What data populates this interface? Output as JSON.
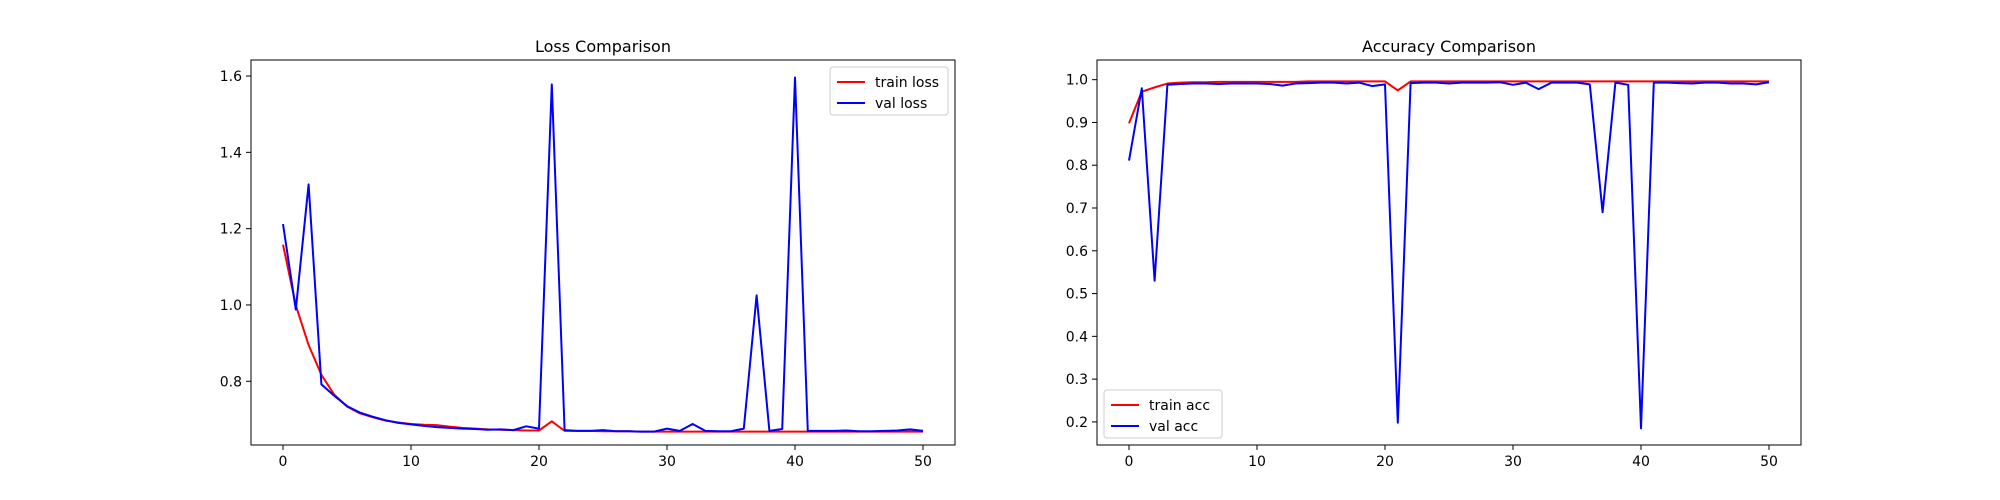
{
  "chart_data": [
    {
      "type": "line",
      "title": "Loss Comparison",
      "xlabel": "",
      "ylabel": "",
      "xlim": [
        -2.5,
        52.5
      ],
      "ylim": [
        0.633,
        1.642
      ],
      "xticks": [
        0,
        10,
        20,
        30,
        40,
        50
      ],
      "yticks": [
        0.8,
        1.0,
        1.2,
        1.4,
        1.6
      ],
      "ytick_labels": [
        "0.8",
        "1.0",
        "1.2",
        "1.4",
        "1.6"
      ],
      "legend_position": "top-right",
      "x": [
        0,
        1,
        2,
        3,
        4,
        5,
        6,
        7,
        8,
        9,
        10,
        11,
        12,
        13,
        14,
        15,
        16,
        17,
        18,
        19,
        20,
        21,
        22,
        23,
        24,
        25,
        26,
        27,
        28,
        29,
        30,
        31,
        32,
        33,
        34,
        35,
        36,
        37,
        38,
        39,
        40,
        41,
        42,
        43,
        44,
        45,
        46,
        47,
        48,
        49,
        50
      ],
      "series": [
        {
          "name": "train loss",
          "color": "#ff0000",
          "values": [
            1.158,
            0.999,
            0.895,
            0.817,
            0.765,
            0.734,
            0.716,
            0.706,
            0.697,
            0.692,
            0.688,
            0.686,
            0.685,
            0.681,
            0.678,
            0.676,
            0.674,
            0.673,
            0.672,
            0.671,
            0.671,
            0.695,
            0.67,
            0.67,
            0.67,
            0.669,
            0.669,
            0.669,
            0.668,
            0.668,
            0.668,
            0.668,
            0.668,
            0.668,
            0.668,
            0.668,
            0.668,
            0.668,
            0.668,
            0.668,
            0.668,
            0.668,
            0.668,
            0.668,
            0.668,
            0.668,
            0.668,
            0.668,
            0.668,
            0.668,
            0.668
          ]
        },
        {
          "name": "val loss",
          "color": "#0000ff",
          "values": [
            1.212,
            0.988,
            1.316,
            0.792,
            0.762,
            0.735,
            0.718,
            0.707,
            0.698,
            0.691,
            0.687,
            0.683,
            0.68,
            0.678,
            0.676,
            0.675,
            0.673,
            0.674,
            0.672,
            0.682,
            0.676,
            1.578,
            0.672,
            0.67,
            0.67,
            0.672,
            0.669,
            0.669,
            0.668,
            0.668,
            0.676,
            0.67,
            0.688,
            0.67,
            0.669,
            0.669,
            0.676,
            1.025,
            0.67,
            0.675,
            1.596,
            0.67,
            0.67,
            0.67,
            0.671,
            0.669,
            0.669,
            0.67,
            0.671,
            0.674,
            0.67
          ]
        }
      ]
    },
    {
      "type": "line",
      "title": "Accuracy Comparison",
      "xlabel": "",
      "ylabel": "",
      "xlim": [
        -2.5,
        52.5
      ],
      "ylim": [
        0.146,
        1.046
      ],
      "xticks": [
        0,
        10,
        20,
        30,
        40,
        50
      ],
      "yticks": [
        0.2,
        0.3,
        0.4,
        0.5,
        0.6,
        0.7,
        0.8,
        0.9,
        1.0
      ],
      "ytick_labels": [
        "0.2",
        "0.3",
        "0.4",
        "0.5",
        "0.6",
        "0.7",
        "0.8",
        "0.9",
        "1.0"
      ],
      "legend_position": "bottom-left",
      "x": [
        0,
        1,
        2,
        3,
        4,
        5,
        6,
        7,
        8,
        9,
        10,
        11,
        12,
        13,
        14,
        15,
        16,
        17,
        18,
        19,
        20,
        21,
        22,
        23,
        24,
        25,
        26,
        27,
        28,
        29,
        30,
        31,
        32,
        33,
        34,
        35,
        36,
        37,
        38,
        39,
        40,
        41,
        42,
        43,
        44,
        45,
        46,
        47,
        48,
        49,
        50
      ],
      "series": [
        {
          "name": "train acc",
          "color": "#ff0000",
          "values": [
            0.898,
            0.972,
            0.982,
            0.991,
            0.993,
            0.994,
            0.994,
            0.995,
            0.995,
            0.995,
            0.995,
            0.995,
            0.995,
            0.995,
            0.996,
            0.996,
            0.996,
            0.996,
            0.996,
            0.996,
            0.996,
            0.975,
            0.996,
            0.996,
            0.996,
            0.996,
            0.996,
            0.996,
            0.996,
            0.996,
            0.996,
            0.996,
            0.996,
            0.996,
            0.996,
            0.996,
            0.996,
            0.996,
            0.996,
            0.996,
            0.996,
            0.996,
            0.996,
            0.996,
            0.996,
            0.996,
            0.996,
            0.996,
            0.996,
            0.996,
            0.996
          ]
        },
        {
          "name": "val acc",
          "color": "#0000ff",
          "values": [
            0.811,
            0.98,
            0.53,
            0.988,
            0.99,
            0.991,
            0.991,
            0.99,
            0.991,
            0.991,
            0.991,
            0.99,
            0.986,
            0.991,
            0.992,
            0.993,
            0.993,
            0.991,
            0.993,
            0.985,
            0.989,
            0.198,
            0.992,
            0.993,
            0.993,
            0.991,
            0.993,
            0.993,
            0.993,
            0.994,
            0.988,
            0.993,
            0.978,
            0.993,
            0.993,
            0.993,
            0.989,
            0.69,
            0.993,
            0.988,
            0.185,
            0.993,
            0.993,
            0.992,
            0.991,
            0.993,
            0.993,
            0.991,
            0.991,
            0.989,
            0.994
          ]
        }
      ]
    }
  ]
}
